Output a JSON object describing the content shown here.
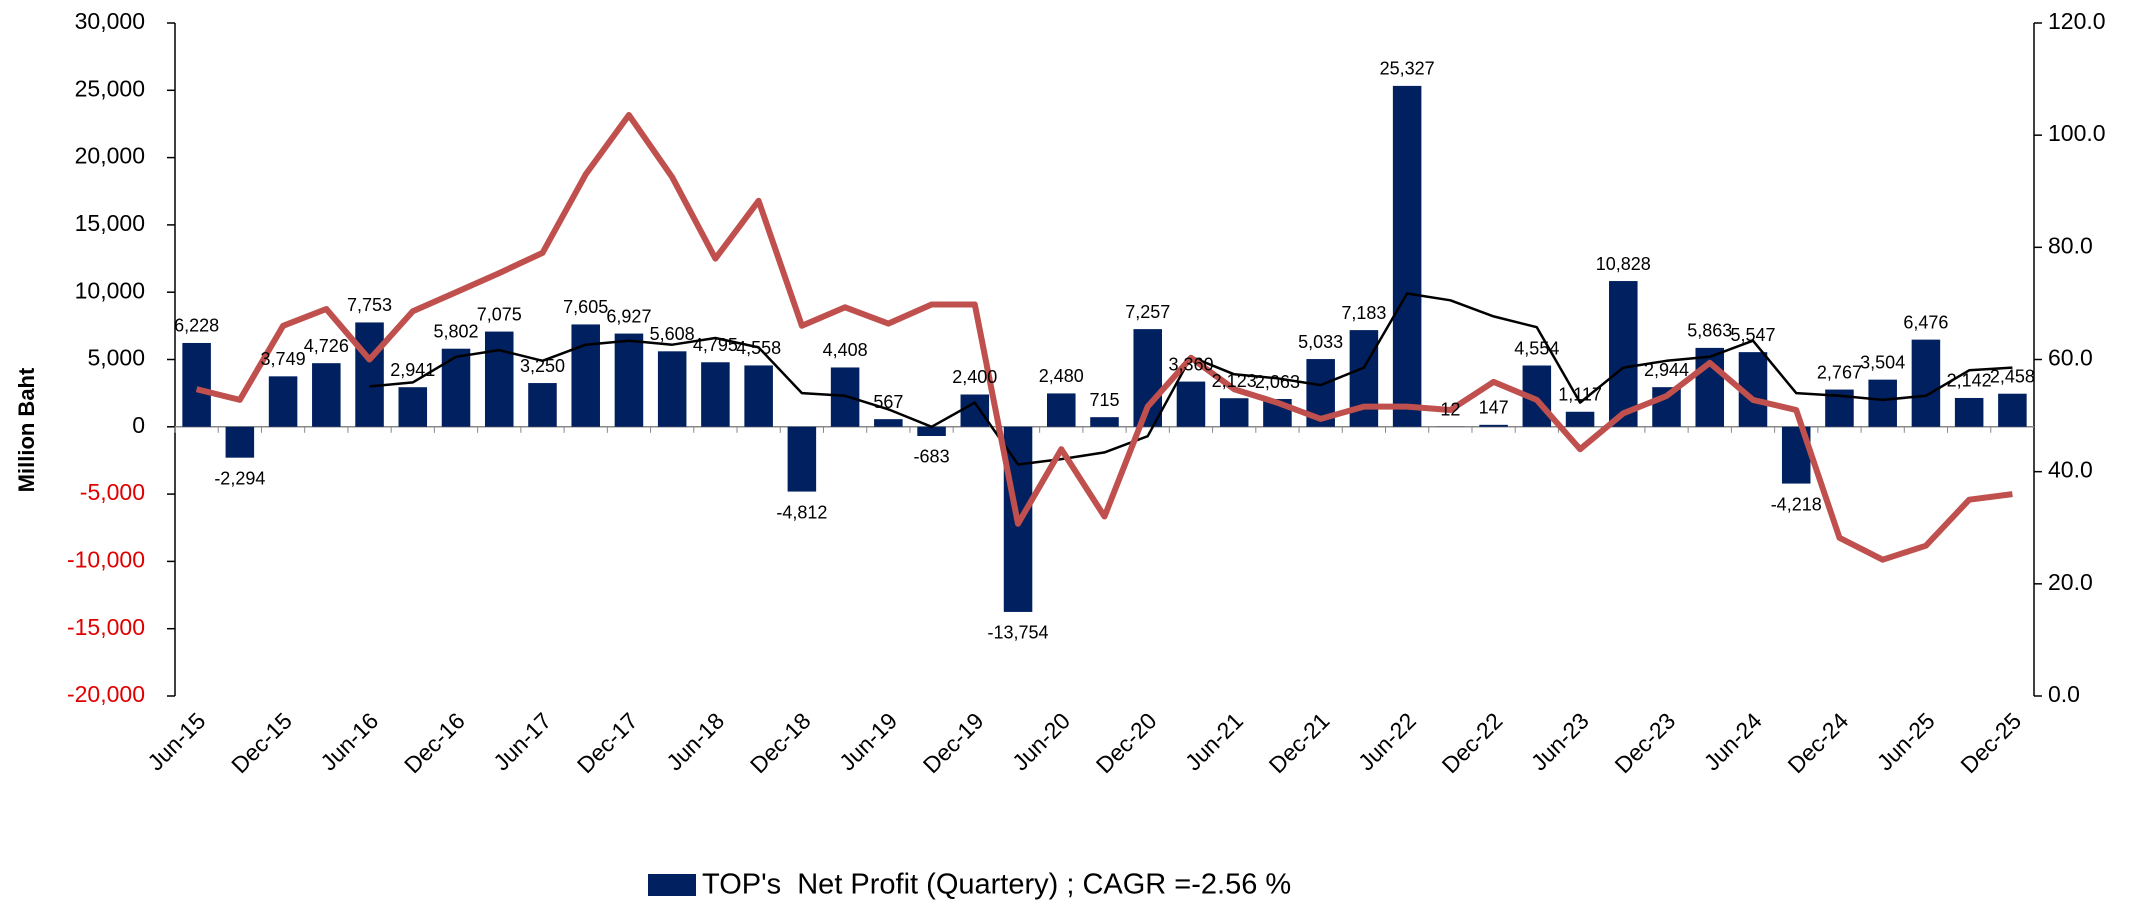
{
  "chart_data": {
    "type": "bar",
    "y_label": "Million Baht",
    "categories": [
      "Jun-15",
      null,
      "Dec-15",
      null,
      "Jun-16",
      null,
      "Dec-16",
      null,
      "Jun-17",
      null,
      "Dec-17",
      null,
      "Jun-18",
      null,
      "Dec-18",
      null,
      "Jun-19",
      null,
      "Dec-19",
      null,
      "Jun-20",
      null,
      "Dec-20",
      null,
      "Jun-21",
      null,
      "Dec-21",
      null,
      "Jun-22",
      null,
      "Dec-22",
      null,
      "Jun-23",
      null,
      "Dec-23",
      null,
      "Jun-24",
      null,
      "Dec-24",
      null,
      "Jun-25",
      null,
      "Dec-25"
    ],
    "series": [
      {
        "name": "TOP's  Net Profit (Quartery) ; CAGR =-2.56 %",
        "type": "bar",
        "color": "#002060",
        "values": [
          6228,
          -2294,
          3749,
          4726,
          7753,
          2941,
          5802,
          7075,
          3250,
          7605,
          6927,
          5608,
          4795,
          4558,
          -4812,
          4408,
          567,
          -683,
          2400,
          -13754,
          2480,
          715,
          7257,
          3360,
          2123,
          2063,
          5033,
          7183,
          25327,
          12,
          147,
          4554,
          1117,
          10828,
          2944,
          5863,
          5547,
          -4218,
          2767,
          3504,
          6476,
          2142,
          2458
        ],
        "value_labels": [
          "6,228",
          "-2,294",
          "3,749",
          "4,726",
          "7,753",
          "2,941",
          "5,802",
          "7,075",
          "3,250",
          "7,605",
          "6,927",
          "5,608",
          "4,795",
          "4,558",
          "-4,812",
          "4,408",
          "567",
          "-683",
          "2,400",
          "-13,754",
          "2,480",
          "715",
          "7,257",
          "3,360",
          "2,123",
          "2,063",
          "5,033",
          "7,183",
          "25,327",
          "12",
          "147",
          "4,554",
          "1,117",
          "10,828",
          "2,944",
          "5,863",
          "5,547",
          "-4,218",
          "2,767",
          "3,504",
          "6,476",
          "2,142",
          "2,458"
        ]
      },
      {
        "type": "line",
        "color": "#000000",
        "values": [
          null,
          null,
          null,
          null,
          3000,
          3300,
          5200,
          5700,
          4900,
          6100,
          6400,
          6100,
          6600,
          5900,
          2500,
          2300,
          1300,
          0,
          1800,
          -2800,
          -2400,
          -1900,
          -700,
          5200,
          3900,
          3600,
          3100,
          4400,
          9900,
          9400,
          8200,
          7400,
          1800,
          4400,
          4900,
          5200,
          6400,
          2500,
          2300,
          2000,
          2300,
          4200,
          4400
        ]
      },
      {
        "type": "line",
        "color": "#c0504d",
        "axis": "y2",
        "values": [
          54.7,
          52.8,
          66,
          69,
          60,
          68.6,
          72,
          75.4,
          79,
          93,
          103.6,
          92.5,
          78,
          88.3,
          66,
          69.3,
          66.4,
          69.8,
          69.8,
          30.7,
          44,
          32,
          51.6,
          60.3,
          54.7,
          52.3,
          49.4,
          51.6,
          51.6,
          51,
          56,
          52.8,
          44,
          50.4,
          53.5,
          59.4,
          52.8,
          51,
          28.2,
          24.3,
          26.8,
          35,
          36
        ]
      }
    ],
    "ylim": [
      -20000,
      30000
    ],
    "yticks": [
      {
        "value": -20000,
        "label": "-20,000"
      },
      {
        "value": -15000,
        "label": "-15,000"
      },
      {
        "value": -10000,
        "label": "-10,000"
      },
      {
        "value": -5000,
        "label": "-5,000"
      },
      0,
      {
        "value": 5000,
        "label": "5,000"
      },
      {
        "value": 10000,
        "label": "10,000"
      },
      {
        "value": 15000,
        "label": "15,000"
      },
      {
        "value": 20000,
        "label": "20,000"
      },
      {
        "value": 25000,
        "label": "25,000"
      },
      {
        "value": 30000,
        "label": "30,000"
      }
    ],
    "y2lim": [
      0,
      120
    ],
    "y2ticks": [
      {
        "value": 0,
        "label": "0.0"
      },
      {
        "value": 20,
        "label": "20.0"
      },
      {
        "value": 40,
        "label": "40.0"
      },
      {
        "value": 60,
        "label": "60.0"
      },
      {
        "value": 80,
        "label": "80.0"
      },
      {
        "value": 100,
        "label": "100.0"
      },
      {
        "value": 120,
        "label": "120.0"
      }
    ],
    "negative_tick_color": "#e00000",
    "legend": "bottom"
  }
}
